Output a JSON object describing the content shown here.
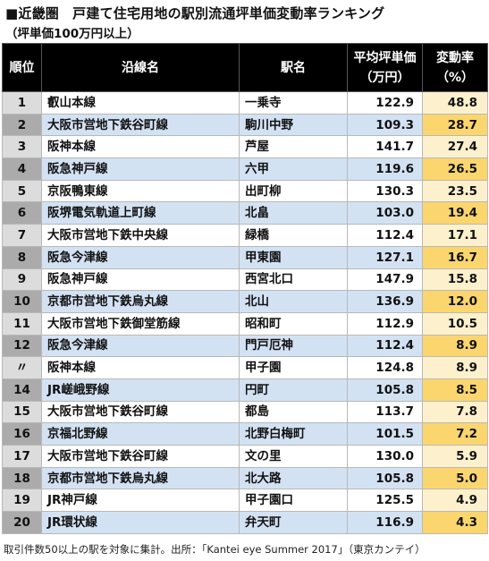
{
  "title": "■近畿圏　戸建て住宅用地の駅別流通坪単価変動率ランキング",
  "subtitle": "（坪単価100万円以上）",
  "table": {
    "headers": {
      "rank": "順位",
      "line": "沿線名",
      "station": "駅名",
      "price_line1": "平均坪単価",
      "price_line2": "（万円）",
      "rate_line1": "変動率",
      "rate_line2": "（%）"
    },
    "rows": [
      {
        "rank": "1",
        "line": "叡山本線",
        "station": "一乗寺",
        "price": "122.9",
        "rate": "48.8"
      },
      {
        "rank": "2",
        "line": "大阪市営地下鉄谷町線",
        "station": "駒川中野",
        "price": "109.3",
        "rate": "28.7"
      },
      {
        "rank": "3",
        "line": "阪神本線",
        "station": "芦屋",
        "price": "141.7",
        "rate": "27.4"
      },
      {
        "rank": "4",
        "line": "阪急神戸線",
        "station": "六甲",
        "price": "119.6",
        "rate": "26.5"
      },
      {
        "rank": "5",
        "line": "京阪鴨東線",
        "station": "出町柳",
        "price": "130.3",
        "rate": "23.5"
      },
      {
        "rank": "6",
        "line": "阪堺電気軌道上町線",
        "station": "北畠",
        "price": "103.0",
        "rate": "19.4"
      },
      {
        "rank": "7",
        "line": "大阪市営地下鉄中央線",
        "station": "緑橋",
        "price": "112.4",
        "rate": "17.1"
      },
      {
        "rank": "8",
        "line": "阪急今津線",
        "station": "甲東園",
        "price": "127.1",
        "rate": "16.7"
      },
      {
        "rank": "9",
        "line": "阪急神戸線",
        "station": "西宮北口",
        "price": "147.9",
        "rate": "15.8"
      },
      {
        "rank": "10",
        "line": "京都市営地下鉄烏丸線",
        "station": "北山",
        "price": "136.9",
        "rate": "12.0"
      },
      {
        "rank": "11",
        "line": "大阪市営地下鉄御堂筋線",
        "station": "昭和町",
        "price": "112.9",
        "rate": "10.5"
      },
      {
        "rank": "12",
        "line": "阪急今津線",
        "station": "門戸厄神",
        "price": "112.4",
        "rate": "8.9"
      },
      {
        "rank": "〃",
        "line": "阪神本線",
        "station": "甲子園",
        "price": "124.8",
        "rate": "8.9"
      },
      {
        "rank": "14",
        "line": "JR嵯峨野線",
        "station": "円町",
        "price": "105.8",
        "rate": "8.5"
      },
      {
        "rank": "15",
        "line": "大阪市営地下鉄谷町線",
        "station": "都島",
        "price": "113.7",
        "rate": "7.8"
      },
      {
        "rank": "16",
        "line": "京福北野線",
        "station": "北野白梅町",
        "price": "101.5",
        "rate": "7.2"
      },
      {
        "rank": "17",
        "line": "大阪市営地下鉄谷町線",
        "station": "文の里",
        "price": "130.0",
        "rate": "5.9"
      },
      {
        "rank": "18",
        "line": "京都市営地下鉄烏丸線",
        "station": "北大路",
        "price": "105.8",
        "rate": "5.0"
      },
      {
        "rank": "19",
        "line": "JR神戸線",
        "station": "甲子園口",
        "price": "125.5",
        "rate": "4.9"
      },
      {
        "rank": "20",
        "line": "JR環状線",
        "station": "弁天町",
        "price": "116.9",
        "rate": "4.3"
      }
    ]
  },
  "footnote": "取引件数50以上の駅を対象に集計。出所：「Kantei eye Summer 2017」（東京カンテイ）",
  "colors": {
    "header_bg": "#000000",
    "row_even_bg": "#d3e2f3",
    "rank_even_bg": "#ababab",
    "rank_odd_bg": "#dcdcdc",
    "rate_even_bg": "#fbd66e",
    "rate_odd_bg": "#fdf1cd"
  }
}
